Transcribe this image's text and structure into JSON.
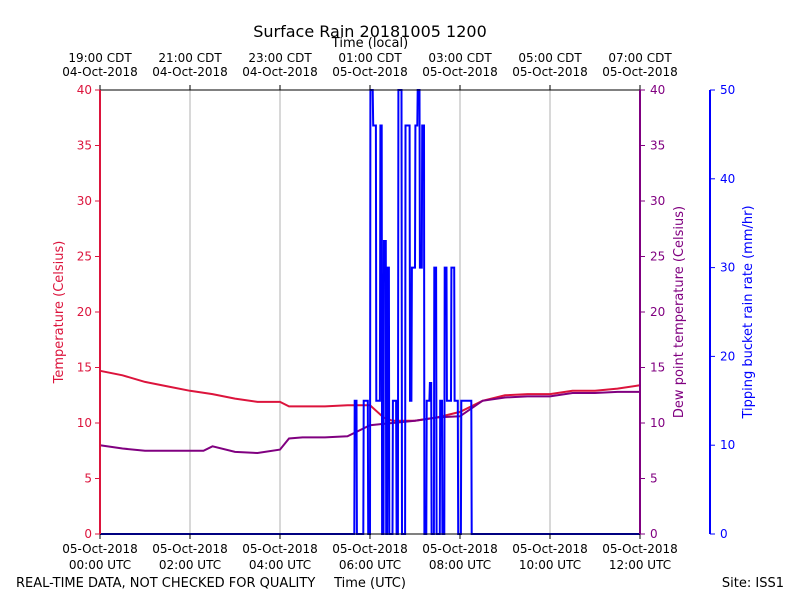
{
  "chart_data": {
    "type": "line",
    "title": "Surface Rain 20181005 1200",
    "x_top_label": "Time (local)",
    "x_bottom_label": "Time (UTC)",
    "xlim_hours": [
      0,
      12
    ],
    "x_top_ticks": [
      {
        "hour": 0,
        "line1": "19:00 CDT",
        "line2": "04-Oct-2018"
      },
      {
        "hour": 2,
        "line1": "21:00 CDT",
        "line2": "04-Oct-2018"
      },
      {
        "hour": 4,
        "line1": "23:00 CDT",
        "line2": "04-Oct-2018"
      },
      {
        "hour": 6,
        "line1": "01:00 CDT",
        "line2": "05-Oct-2018"
      },
      {
        "hour": 8,
        "line1": "03:00 CDT",
        "line2": "05-Oct-2018"
      },
      {
        "hour": 10,
        "line1": "05:00 CDT",
        "line2": "05-Oct-2018"
      },
      {
        "hour": 12,
        "line1": "07:00 CDT",
        "line2": "05-Oct-2018"
      }
    ],
    "x_bottom_ticks": [
      {
        "hour": 0,
        "line1": "05-Oct-2018",
        "line2": "00:00 UTC"
      },
      {
        "hour": 2,
        "line1": "05-Oct-2018",
        "line2": "02:00 UTC"
      },
      {
        "hour": 4,
        "line1": "05-Oct-2018",
        "line2": "04:00 UTC"
      },
      {
        "hour": 6,
        "line1": "05-Oct-2018",
        "line2": "06:00 UTC"
      },
      {
        "hour": 8,
        "line1": "05-Oct-2018",
        "line2": "08:00 UTC"
      },
      {
        "hour": 10,
        "line1": "05-Oct-2018",
        "line2": "10:00 UTC"
      },
      {
        "hour": 12,
        "line1": "05-Oct-2018",
        "line2": "12:00 UTC"
      }
    ],
    "y_left": {
      "label": "Temperature (Celsius)",
      "ylim": [
        0,
        40
      ],
      "ticks": [
        0,
        5,
        10,
        15,
        20,
        25,
        30,
        35,
        40
      ],
      "color": "#dc143c"
    },
    "y_right1": {
      "label": "Dew point temperature (Celsius)",
      "ylim": [
        0,
        40
      ],
      "ticks": [
        0,
        5,
        10,
        15,
        20,
        25,
        30,
        35,
        40
      ],
      "color": "#800080"
    },
    "y_right2": {
      "label": "Tipping bucket rain rate (mm/hr)",
      "ylim": [
        0,
        50
      ],
      "ticks": [
        0,
        10,
        20,
        30,
        40,
        50
      ],
      "color": "#0000ff"
    },
    "grid": "vertical",
    "series": [
      {
        "color": "#dc143c",
        "axis": "y_left",
        "x": [
          0,
          0.5,
          1,
          1.5,
          2,
          2.5,
          3,
          3.5,
          4,
          4.2,
          4.5,
          5,
          5.5,
          6,
          6.3,
          6.5,
          7,
          7.5,
          8,
          8.5,
          9,
          9.5,
          10,
          10.5,
          11,
          11.5,
          12
        ],
        "y": [
          14.7,
          14.3,
          13.7,
          13.3,
          12.9,
          12.6,
          12.2,
          11.9,
          11.9,
          11.5,
          11.5,
          11.5,
          11.6,
          11.6,
          10.5,
          10.2,
          10.2,
          10.5,
          11.0,
          12.0,
          12.5,
          12.6,
          12.6,
          12.9,
          12.9,
          13.1,
          13.4
        ]
      },
      {
        "color": "#800080",
        "axis": "y_right1",
        "x": [
          0,
          0.5,
          1,
          1.5,
          2,
          2.3,
          2.5,
          3,
          3.5,
          4,
          4.2,
          4.5,
          5,
          5.5,
          6,
          6.5,
          7,
          7.5,
          8,
          8.5,
          9,
          9.5,
          10,
          10.5,
          11,
          11.5,
          12
        ],
        "y": [
          8.0,
          7.7,
          7.5,
          7.5,
          7.5,
          7.5,
          7.9,
          7.4,
          7.3,
          7.6,
          8.6,
          8.7,
          8.7,
          8.8,
          9.8,
          10.0,
          10.2,
          10.5,
          10.6,
          12.0,
          12.3,
          12.4,
          12.4,
          12.7,
          12.7,
          12.8,
          12.8
        ]
      },
      {
        "color": "#0000ff",
        "axis": "y_right2",
        "x": [
          0,
          5.65,
          5.66,
          5.7,
          5.71,
          5.85,
          5.86,
          5.95,
          5.96,
          6.0,
          6.01,
          6.06,
          6.07,
          6.13,
          6.14,
          6.22,
          6.23,
          6.26,
          6.27,
          6.3,
          6.31,
          6.35,
          6.36,
          6.38,
          6.39,
          6.42,
          6.43,
          6.5,
          6.51,
          6.58,
          6.59,
          6.62,
          6.63,
          6.7,
          6.71,
          6.78,
          6.79,
          6.88,
          6.89,
          6.92,
          6.93,
          7.0,
          7.01,
          7.05,
          7.06,
          7.1,
          7.11,
          7.15,
          7.16,
          7.2,
          7.21,
          7.25,
          7.26,
          7.32,
          7.33,
          7.36,
          7.37,
          7.42,
          7.43,
          7.47,
          7.48,
          7.55,
          7.56,
          7.6,
          7.61,
          7.65,
          7.66,
          7.7,
          7.71,
          7.8,
          7.81,
          7.87,
          7.88,
          7.95,
          7.96,
          8.02,
          8.03,
          8.25,
          8.26,
          12
        ],
        "y": [
          0,
          0,
          15,
          15,
          0,
          0,
          15,
          15,
          0,
          0,
          50,
          50,
          46,
          46,
          15,
          15,
          46,
          46,
          0,
          0,
          33,
          33,
          0,
          0,
          30,
          30,
          0,
          0,
          15,
          15,
          0,
          0,
          50,
          50,
          0,
          0,
          46,
          46,
          15,
          15,
          30,
          30,
          46,
          46,
          50,
          50,
          30,
          30,
          46,
          46,
          0,
          0,
          15,
          15,
          17,
          17,
          0,
          0,
          30,
          30,
          0,
          0,
          15,
          15,
          0,
          0,
          30,
          30,
          15,
          15,
          30,
          30,
          15,
          15,
          0,
          0,
          15,
          15,
          0,
          0
        ]
      }
    ],
    "footer_left": "REAL-TIME DATA, NOT CHECKED FOR QUALITY",
    "footer_right": "Site: ISS1"
  }
}
